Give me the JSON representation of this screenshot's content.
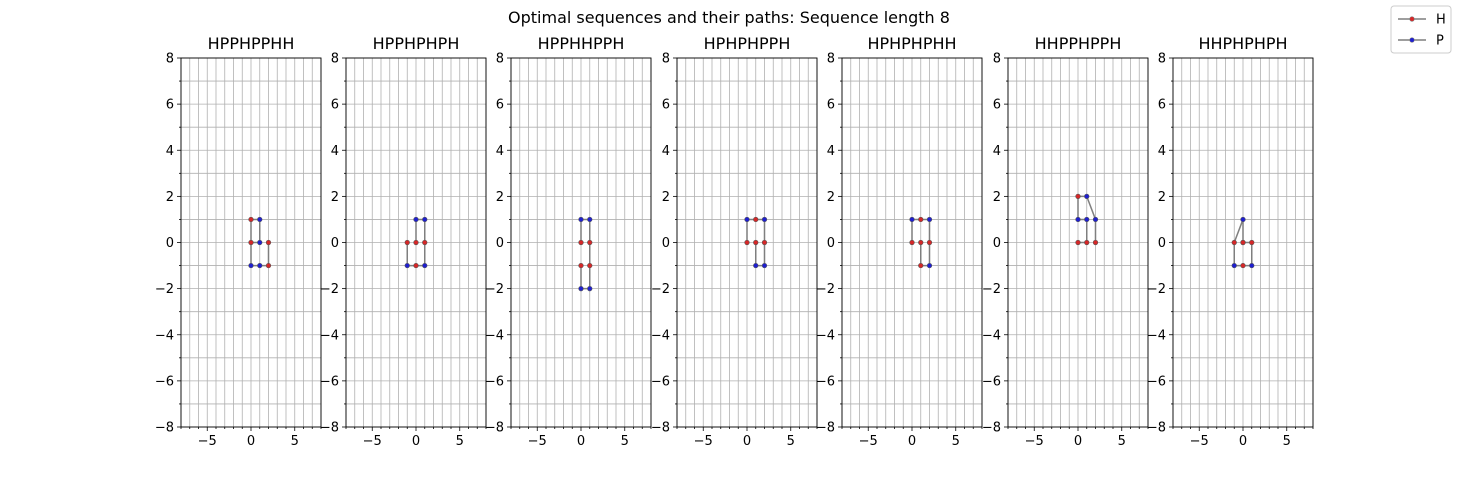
{
  "figure": {
    "title": "Optimal sequences and their paths: Sequence length 8"
  },
  "legend": {
    "position": "top-right",
    "items": [
      {
        "label": "H",
        "color": "#d62728"
      },
      {
        "label": "P",
        "color": "#1f1fd0"
      }
    ]
  },
  "colors": {
    "path": "#7f7f7f",
    "grid": "#b0b0b0",
    "H": "#d62728",
    "P": "#1f1fd0"
  },
  "chart_data": [
    {
      "type": "line",
      "title": "HPPHPPHH",
      "xlim": [
        -8,
        8
      ],
      "ylim": [
        -8,
        8
      ],
      "grid": true,
      "x": [
        0,
        1,
        1,
        0,
        0,
        1,
        2,
        2
      ],
      "y": [
        0,
        0,
        1,
        1,
        -1,
        -1,
        -1,
        0
      ]
    },
    {
      "type": "line",
      "title": "HPPHPHPH",
      "xlim": [
        -8,
        8
      ],
      "ylim": [
        -8,
        8
      ],
      "grid": true,
      "x": [
        0,
        0,
        1,
        1,
        1,
        0,
        -1,
        -1
      ],
      "y": [
        0,
        1,
        1,
        0,
        -1,
        -1,
        -1,
        0
      ]
    },
    {
      "type": "line",
      "title": "HPPHHPPH",
      "xlim": [
        -8,
        8
      ],
      "ylim": [
        -8,
        8
      ],
      "grid": true,
      "x": [
        0,
        0,
        1,
        1,
        1,
        1,
        0,
        0
      ],
      "y": [
        0,
        1,
        1,
        0,
        -1,
        -2,
        -2,
        -1
      ]
    },
    {
      "type": "line",
      "title": "HPHPHPPH",
      "xlim": [
        -8,
        8
      ],
      "ylim": [
        -8,
        8
      ],
      "grid": true,
      "x": [
        0,
        0,
        1,
        2,
        2,
        2,
        1,
        1
      ],
      "y": [
        0,
        1,
        1,
        1,
        0,
        -1,
        -1,
        0
      ]
    },
    {
      "type": "line",
      "title": "HPHPHPHH",
      "xlim": [
        -8,
        8
      ],
      "ylim": [
        -8,
        8
      ],
      "grid": true,
      "x": [
        0,
        0,
        1,
        2,
        2,
        2,
        1,
        1
      ],
      "y": [
        0,
        1,
        1,
        1,
        0,
        -1,
        -1,
        0
      ]
    },
    {
      "type": "line",
      "title": "HHPPHPPH",
      "xlim": [
        -8,
        8
      ],
      "ylim": [
        -8,
        8
      ],
      "grid": true,
      "x": [
        0,
        1,
        1,
        0,
        0,
        1,
        2,
        2
      ],
      "y": [
        0,
        0,
        1,
        1,
        2,
        2,
        1,
        0
      ]
    },
    {
      "type": "line",
      "title": "HHPHPHPH",
      "xlim": [
        -8,
        8
      ],
      "ylim": [
        -8,
        8
      ],
      "grid": true,
      "x": [
        0,
        1,
        1,
        0,
        -1,
        -1,
        0,
        0
      ],
      "y": [
        0,
        0,
        -1,
        -1,
        -1,
        0,
        1,
        0
      ]
    }
  ]
}
